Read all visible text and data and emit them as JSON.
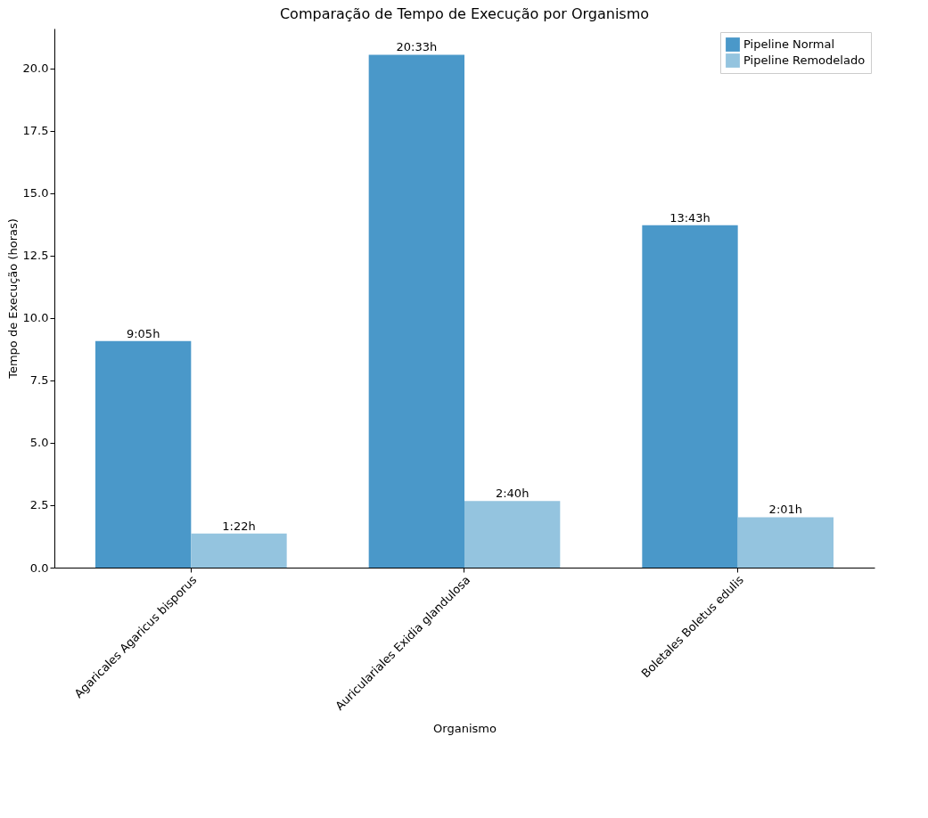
{
  "chart_data": {
    "type": "bar",
    "title": "Comparação de Tempo de Execução por Organismo",
    "xlabel": "Organismo",
    "ylabel": "Tempo de Execução (horas)",
    "categories": [
      "Agaricales Agaricus bisporus",
      "Auriculariales Exidia glandulosa",
      "Boletales Boletus edulis"
    ],
    "series": [
      {
        "name": "Pipeline Normal",
        "color": "#4a98c9",
        "values": [
          9.08,
          20.55,
          13.72
        ],
        "value_labels": [
          "9:05h",
          "20:33h",
          "13:43h"
        ]
      },
      {
        "name": "Pipeline Remodelado",
        "color": "#94c4df",
        "values": [
          1.37,
          2.67,
          2.02
        ],
        "value_labels": [
          "1:22h",
          "2:40h",
          "2:01h"
        ]
      }
    ],
    "ylim": [
      0,
      21.6
    ],
    "yticks": [
      {
        "value": 0,
        "label": "0.0"
      },
      {
        "value": 2.5,
        "label": "2.5"
      },
      {
        "value": 5,
        "label": "5.0"
      },
      {
        "value": 7.5,
        "label": "7.5"
      },
      {
        "value": 10,
        "label": "10.0"
      },
      {
        "value": 12.5,
        "label": "12.5"
      },
      {
        "value": 15,
        "label": "15.0"
      },
      {
        "value": 17.5,
        "label": "17.5"
      },
      {
        "value": 20,
        "label": "20.0"
      }
    ],
    "grid": false,
    "legend": "top right"
  }
}
